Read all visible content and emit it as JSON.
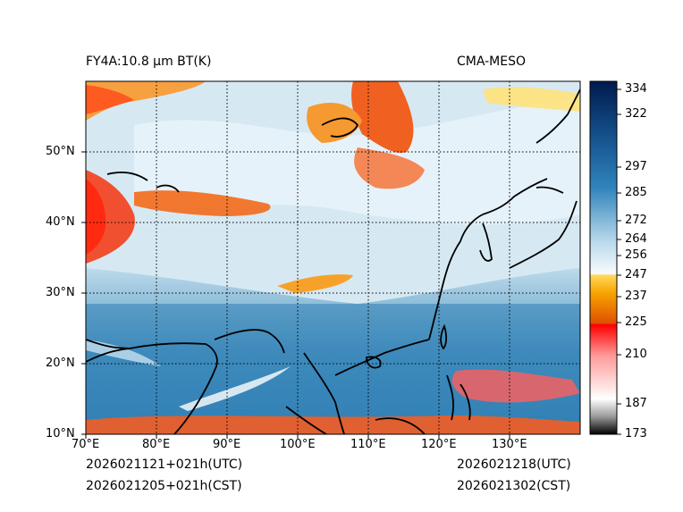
{
  "header": {
    "title_left": "FY4A:10.8 µm BT(K)",
    "title_right": "CMA-MESO"
  },
  "footer": {
    "init_utc": "2026021121+021h(UTC)",
    "init_cst": "2026021205+021h(CST)",
    "valid_utc": "2026021218(UTC)",
    "valid_cst": "2026021302(CST)"
  },
  "map": {
    "lon_ticks": [
      "70°E",
      "80°E",
      "90°E",
      "100°E",
      "110°E",
      "120°E",
      "130°E"
    ],
    "lat_ticks": [
      "50°N",
      "40°N",
      "30°N",
      "20°N",
      "10°N"
    ],
    "lon_range": [
      70,
      140
    ],
    "lat_range": [
      10,
      60
    ]
  },
  "colorbar": {
    "ticks": [
      "334",
      "322",
      "297",
      "285",
      "272",
      "264",
      "256",
      "247",
      "237",
      "225",
      "210",
      "187",
      "173"
    ],
    "colors": {
      "cold_black": "#000000",
      "grey": "#a0a0a0",
      "red": "#ff0000",
      "orange": "#f08000",
      "yellow": "#ffd000",
      "white": "#ffffff",
      "light_blue": "#a8d0e6",
      "mid_blue": "#1f6fa6",
      "navy": "#001a4d"
    }
  }
}
